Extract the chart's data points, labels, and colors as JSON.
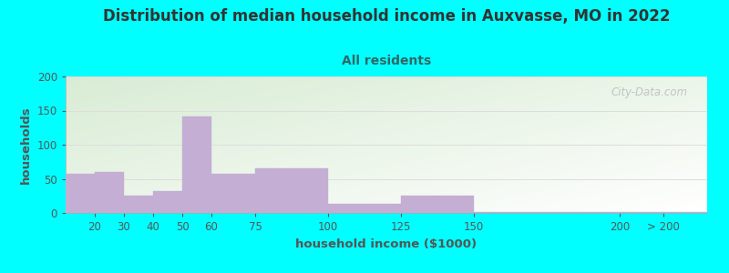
{
  "title": "Distribution of median household income in Auxvasse, MO in 2022",
  "subtitle": "All residents",
  "xlabel": "household income ($1000)",
  "ylabel": "households",
  "title_fontsize": 12,
  "subtitle_fontsize": 10,
  "label_fontsize": 9.5,
  "tick_fontsize": 8.5,
  "bar_color": "#c4aed4",
  "background_color": "#00ffff",
  "plot_bg_top_left": "#d8ecd4",
  "plot_bg_bottom_right": "#ffffff",
  "watermark": "City-Data.com",
  "ylim": [
    0,
    200
  ],
  "yticks": [
    0,
    50,
    100,
    150,
    200
  ],
  "bar_lefts": [
    10,
    20,
    30,
    40,
    50,
    60,
    75,
    100,
    125,
    150,
    200
  ],
  "bar_widths": [
    10,
    10,
    10,
    10,
    10,
    15,
    25,
    25,
    25,
    50,
    30
  ],
  "bar_heights": [
    58,
    60,
    26,
    32,
    142,
    58,
    66,
    14,
    25,
    2,
    2
  ],
  "xlim": [
    10,
    230
  ],
  "xtick_positions": [
    20,
    30,
    40,
    50,
    60,
    75,
    100,
    125,
    150,
    200,
    215
  ],
  "xtick_labels": [
    "20",
    "30",
    "40",
    "50",
    "60",
    "75",
    "100",
    "125",
    "150",
    "200",
    "> 200"
  ],
  "title_color": "#333333",
  "subtitle_color": "#336666",
  "axis_label_color": "#555555",
  "tick_color": "#555555",
  "grid_color": "#dddddd",
  "watermark_color": "#bbbbbb"
}
